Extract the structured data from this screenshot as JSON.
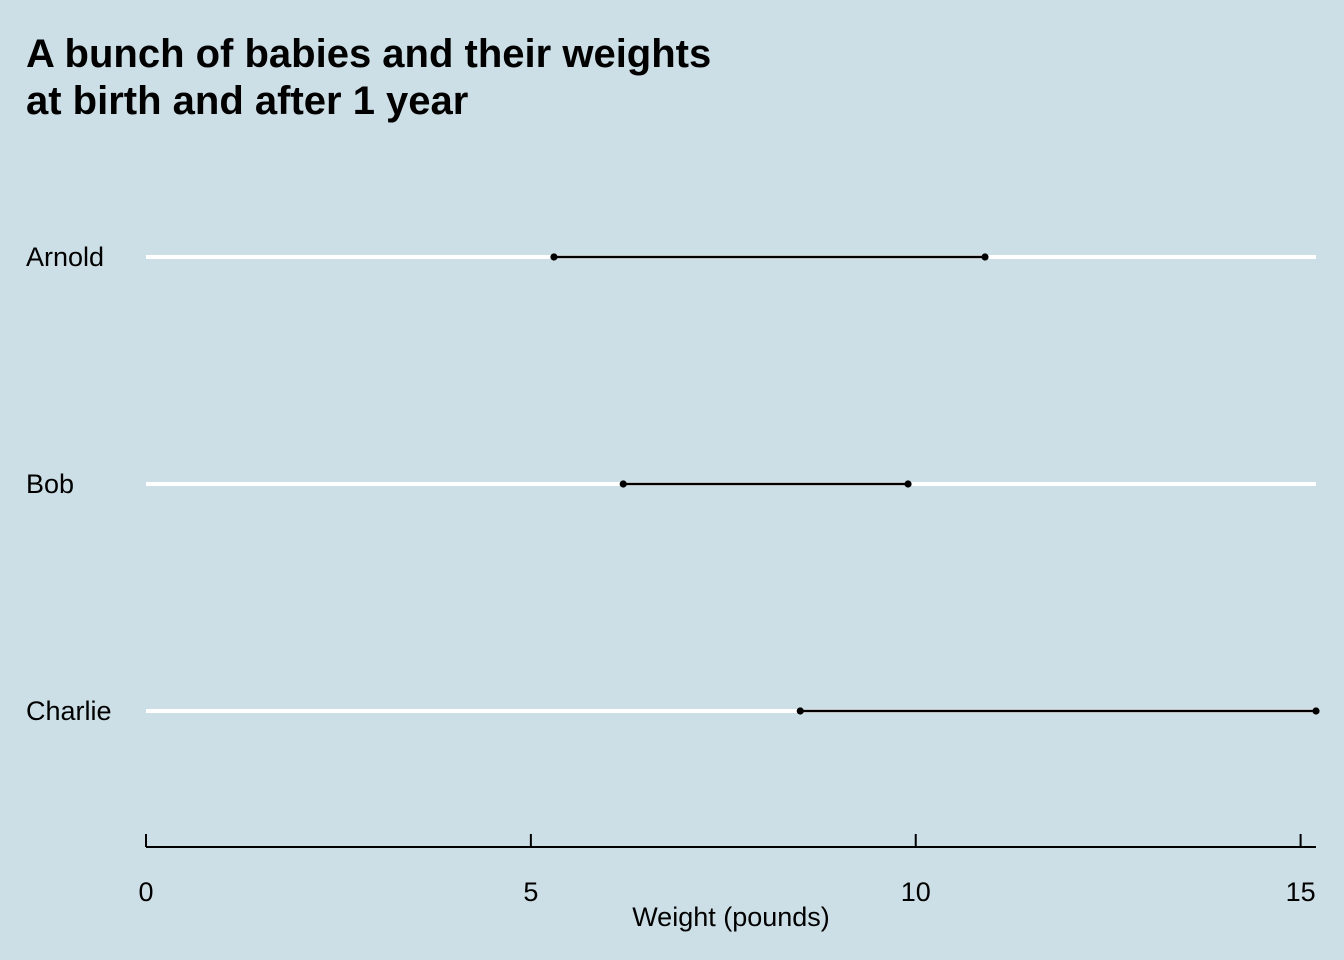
{
  "chart_data": {
    "type": "dumbbell",
    "title_lines": [
      "A bunch of babies and their weights",
      "at birth and after 1 year"
    ],
    "xlabel": "Weight (pounds)",
    "ylabel": "",
    "xlim": [
      0,
      15.2
    ],
    "x_ticks": [
      0,
      5,
      10,
      15
    ],
    "x_tick_labels": [
      "0",
      "5",
      "10",
      "15"
    ],
    "grid": "horizontal",
    "background_color": "#cddfe6",
    "gridline_color": "#ffffff",
    "segment_color": "#000000",
    "categories": [
      "Arnold",
      "Bob",
      "Charlie"
    ],
    "series": [
      {
        "values": [
          5.3,
          6.2,
          8.5
        ]
      },
      {
        "values": [
          10.9,
          9.9,
          15.2
        ]
      }
    ]
  }
}
